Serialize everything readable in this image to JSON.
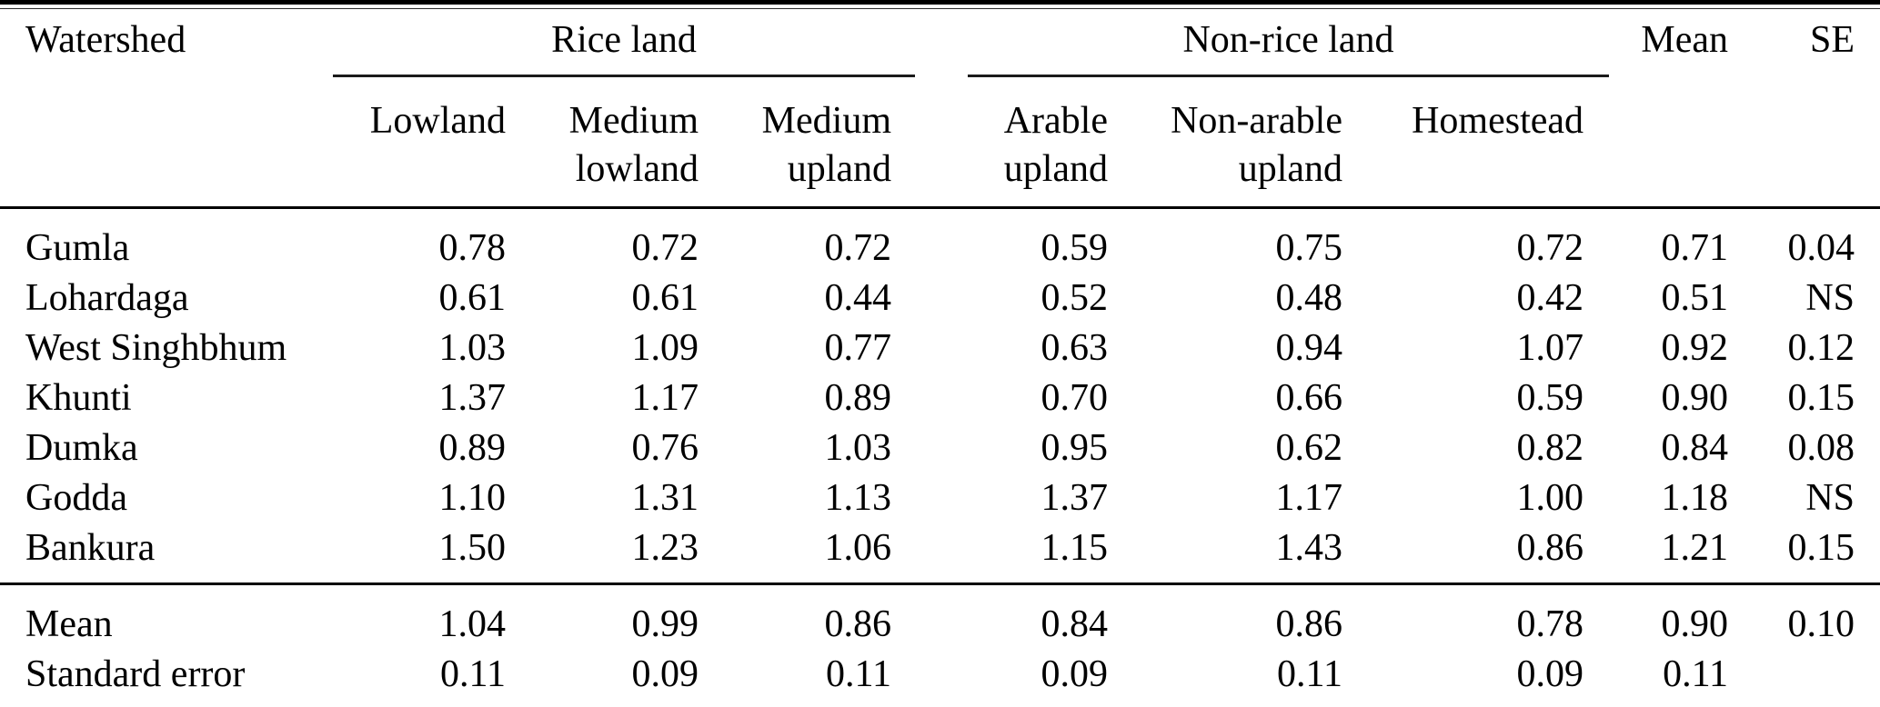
{
  "page": {
    "background_color": "#ffffff",
    "text_color": "#000000",
    "rule_color": "#000000"
  },
  "table": {
    "header": {
      "watershed": "Watershed",
      "rice_land": {
        "label": "Rice land",
        "children": [
          "Lowland",
          "Medium lowland",
          "Medium upland"
        ]
      },
      "non_rice_land": {
        "label": "Non-rice land",
        "children": [
          "Arable upland",
          "Non-arable upland",
          "Homestead"
        ]
      },
      "mean": "Mean",
      "se": "SE"
    },
    "rows": [
      {
        "watershed": "Gumla",
        "values": [
          "0.78",
          "0.72",
          "0.72",
          "0.59",
          "0.75",
          "0.72",
          "0.71",
          "0.04"
        ]
      },
      {
        "watershed": "Lohardaga",
        "values": [
          "0.61",
          "0.61",
          "0.44",
          "0.52",
          "0.48",
          "0.42",
          "0.51",
          "NS"
        ]
      },
      {
        "watershed": "West Singhbhum",
        "values": [
          "1.03",
          "1.09",
          "0.77",
          "0.63",
          "0.94",
          "1.07",
          "0.92",
          "0.12"
        ]
      },
      {
        "watershed": "Khunti",
        "values": [
          "1.37",
          "1.17",
          "0.89",
          "0.70",
          "0.66",
          "0.59",
          "0.90",
          "0.15"
        ]
      },
      {
        "watershed": "Dumka",
        "values": [
          "0.89",
          "0.76",
          "1.03",
          "0.95",
          "0.62",
          "0.82",
          "0.84",
          "0.08"
        ]
      },
      {
        "watershed": "Godda",
        "values": [
          "1.10",
          "1.31",
          "1.13",
          "1.37",
          "1.17",
          "1.00",
          "1.18",
          "NS"
        ]
      },
      {
        "watershed": "Bankura",
        "values": [
          "1.50",
          "1.23",
          "1.06",
          "1.15",
          "1.43",
          "0.86",
          "1.21",
          "0.15"
        ]
      }
    ],
    "footer": [
      {
        "label": "Mean",
        "values": [
          "1.04",
          "0.99",
          "0.86",
          "0.84",
          "0.86",
          "0.78",
          "0.90",
          "0.10"
        ]
      },
      {
        "label": "Standard error",
        "values": [
          "0.11",
          "0.09",
          "0.11",
          "0.09",
          "0.11",
          "0.09",
          "0.11",
          ""
        ]
      }
    ]
  },
  "chart_data": {
    "type": "table",
    "columns": [
      "Watershed",
      "Rice land: Lowland",
      "Rice land: Medium lowland",
      "Rice land: Medium upland",
      "Non-rice land: Arable upland",
      "Non-rice land: Non-arable upland",
      "Non-rice land: Homestead",
      "Mean",
      "SE"
    ],
    "rows": [
      [
        "Gumla",
        "0.78",
        "0.72",
        "0.72",
        "0.59",
        "0.75",
        "0.72",
        "0.71",
        "0.04"
      ],
      [
        "Lohardaga",
        "0.61",
        "0.61",
        "0.44",
        "0.52",
        "0.48",
        "0.42",
        "0.51",
        "NS"
      ],
      [
        "West Singhbhum",
        "1.03",
        "1.09",
        "0.77",
        "0.63",
        "0.94",
        "1.07",
        "0.92",
        "0.12"
      ],
      [
        "Khunti",
        "1.37",
        "1.17",
        "0.89",
        "0.70",
        "0.66",
        "0.59",
        "0.90",
        "0.15"
      ],
      [
        "Dumka",
        "0.89",
        "0.76",
        "1.03",
        "0.95",
        "0.62",
        "0.82",
        "0.84",
        "0.08"
      ],
      [
        "Godda",
        "1.10",
        "1.31",
        "1.13",
        "1.37",
        "1.17",
        "1.00",
        "1.18",
        "NS"
      ],
      [
        "Bankura",
        "1.50",
        "1.23",
        "1.06",
        "1.15",
        "1.43",
        "0.86",
        "1.21",
        "0.15"
      ],
      [
        "Mean",
        "1.04",
        "0.99",
        "0.86",
        "0.84",
        "0.86",
        "0.78",
        "0.90",
        "0.10"
      ],
      [
        "Standard error",
        "0.11",
        "0.09",
        "0.11",
        "0.09",
        "0.11",
        "0.09",
        "0.11",
        ""
      ]
    ]
  }
}
